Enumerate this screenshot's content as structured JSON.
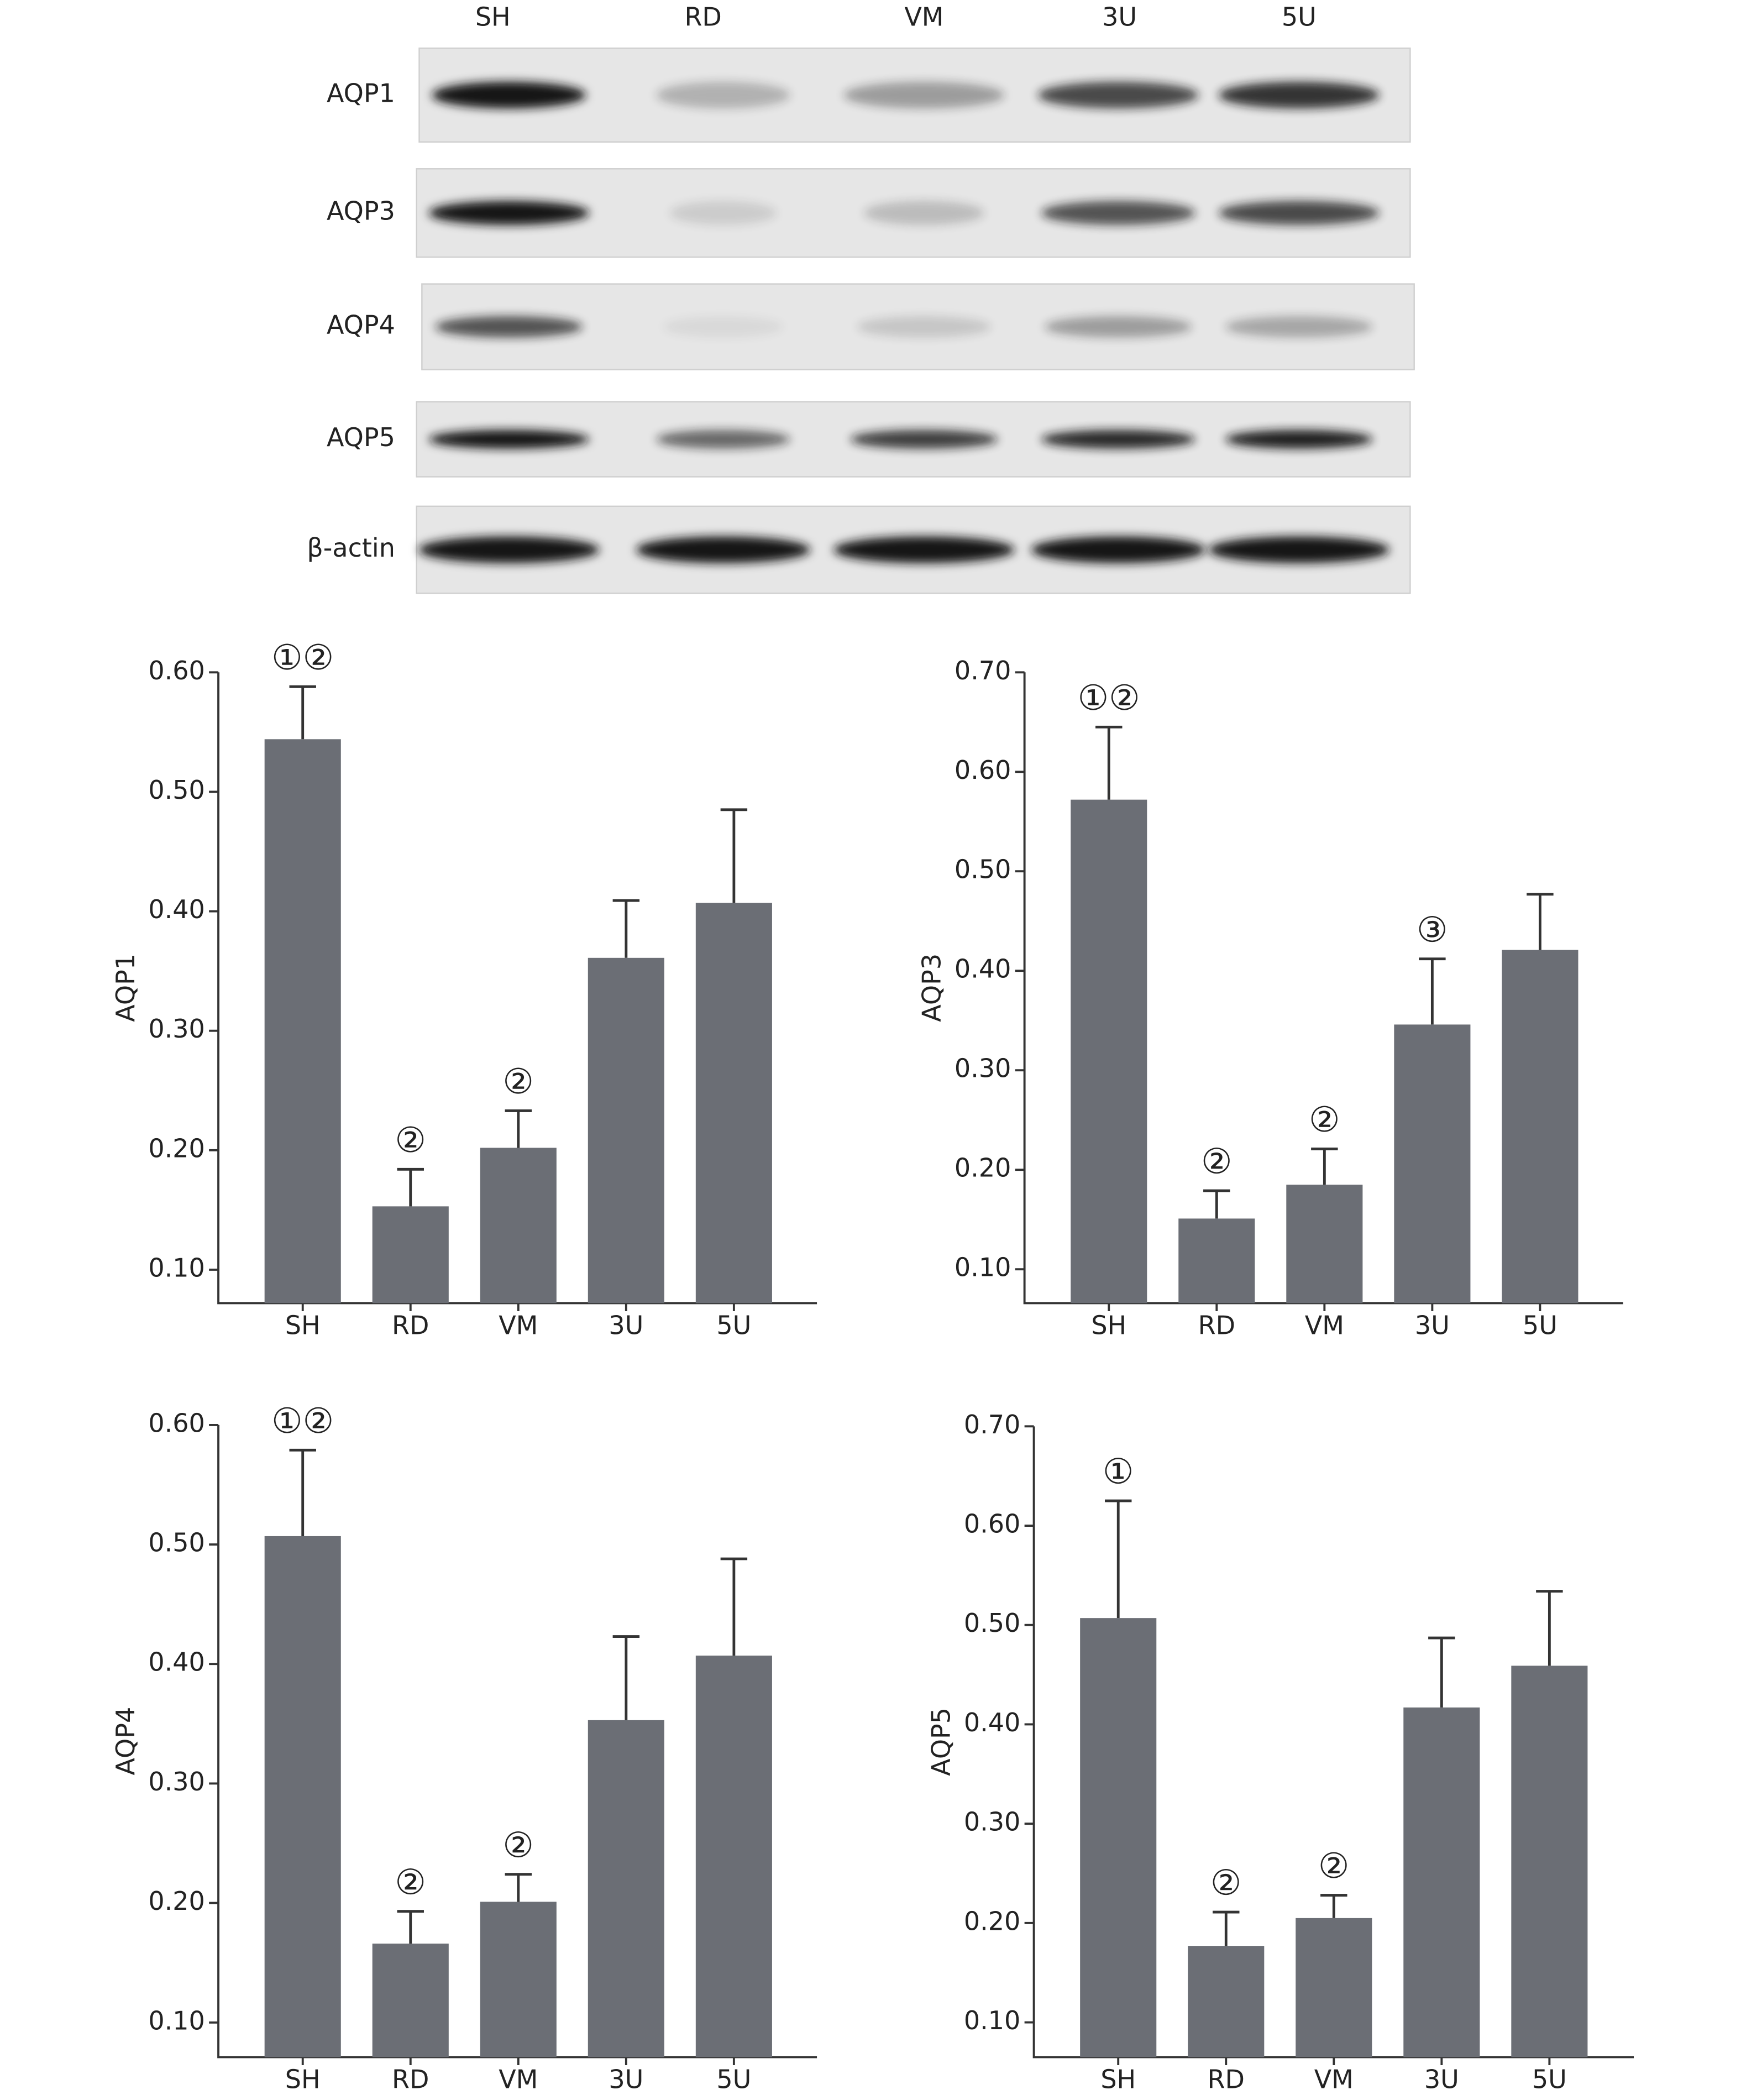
{
  "blot": {
    "lanes": [
      "SH",
      "RD",
      "VM",
      "3U",
      "5U"
    ],
    "rows": [
      "AQP1",
      "AQP3",
      "AQP4",
      "AQP5",
      "β-actin"
    ]
  },
  "chart_data": [
    {
      "type": "bar",
      "y_label": "AQP1",
      "categories": [
        "SH",
        "RD",
        "VM",
        "3U",
        "5U"
      ],
      "values": [
        0.544,
        0.153,
        0.202,
        0.361,
        0.407
      ],
      "errors": [
        0.044,
        0.031,
        0.031,
        0.048,
        0.078
      ],
      "annotations": [
        "①②",
        "②",
        "②",
        null,
        null
      ],
      "color": "#6b6e75",
      "ylim": [
        0.072,
        0.6
      ],
      "yticks": [
        {
          "value": 0.1,
          "label": "0.10"
        },
        {
          "value": 0.2,
          "label": "0.20"
        },
        {
          "value": 0.3,
          "label": "0.30"
        },
        {
          "value": 0.4,
          "label": "0.40"
        },
        {
          "value": 0.5,
          "label": "0.50"
        },
        {
          "value": 0.6,
          "label": "0.60"
        }
      ]
    },
    {
      "type": "bar",
      "y_label": "AQP3",
      "categories": [
        "SH",
        "RD",
        "VM",
        "3U",
        "5U"
      ],
      "values": [
        0.572,
        0.151,
        0.185,
        0.346,
        0.421
      ],
      "errors": [
        0.073,
        0.028,
        0.036,
        0.066,
        0.056
      ],
      "annotations": [
        "①②",
        "②",
        "②",
        "③",
        null
      ],
      "color": "#6b6e75",
      "ylim": [
        0.066,
        0.7
      ],
      "yticks": [
        {
          "value": 0.1,
          "label": "0.10"
        },
        {
          "value": 0.2,
          "label": "0.20"
        },
        {
          "value": 0.3,
          "label": "0.30"
        },
        {
          "value": 0.4,
          "label": "0.40"
        },
        {
          "value": 0.5,
          "label": "0.50"
        },
        {
          "value": 0.6,
          "label": "0.60"
        },
        {
          "value": 0.7,
          "label": "0.70"
        }
      ]
    },
    {
      "type": "bar",
      "y_label": "AQP4",
      "categories": [
        "SH",
        "RD",
        "VM",
        "3U",
        "5U"
      ],
      "values": [
        0.507,
        0.166,
        0.201,
        0.353,
        0.407
      ],
      "errors": [
        0.072,
        0.027,
        0.023,
        0.07,
        0.081
      ],
      "annotations": [
        "①②",
        "②",
        "②",
        null,
        null
      ],
      "color": "#6b6e75",
      "ylim": [
        0.071,
        0.6
      ],
      "yticks": [
        {
          "value": 0.1,
          "label": "0.10"
        },
        {
          "value": 0.2,
          "label": "0.20"
        },
        {
          "value": 0.3,
          "label": "0.30"
        },
        {
          "value": 0.4,
          "label": "0.40"
        },
        {
          "value": 0.5,
          "label": "0.50"
        },
        {
          "value": 0.6,
          "label": "0.60"
        }
      ]
    },
    {
      "type": "bar",
      "y_label": "AQP5",
      "categories": [
        "SH",
        "RD",
        "VM",
        "3U",
        "5U"
      ],
      "values": [
        0.507,
        0.177,
        0.205,
        0.417,
        0.459
      ],
      "errors": [
        0.118,
        0.034,
        0.023,
        0.07,
        0.075
      ],
      "annotations": [
        "①",
        "②",
        "②",
        null,
        null
      ],
      "color": "#6b6e75",
      "ylim": [
        0.065,
        0.7
      ],
      "yticks": [
        {
          "value": 0.1,
          "label": "0.10"
        },
        {
          "value": 0.2,
          "label": "0.20"
        },
        {
          "value": 0.3,
          "label": "0.30"
        },
        {
          "value": 0.4,
          "label": "0.40"
        },
        {
          "value": 0.5,
          "label": "0.50"
        },
        {
          "value": 0.6,
          "label": "0.60"
        },
        {
          "value": 0.7,
          "label": "0.70"
        }
      ]
    }
  ]
}
